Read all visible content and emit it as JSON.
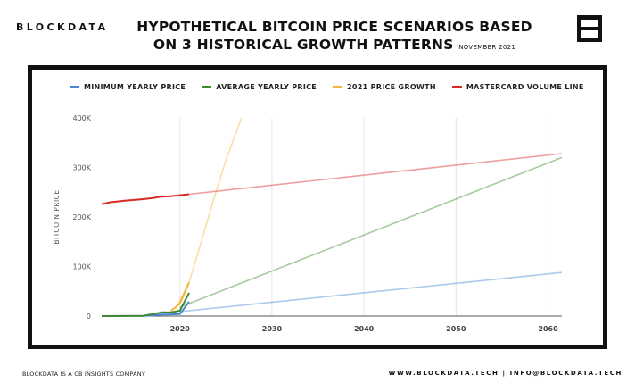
{
  "brand": "BLOCKDATA",
  "title_line1": "HYPOTHETICAL BITCOIN PRICE SCENARIOS BASED",
  "title_line2": "ON 3 HISTORICAL GROWTH PATTERNS",
  "date": "NOVEMBER 2021",
  "footer_left": "BLOCKDATA IS A CB INSIGHTS COMPANY",
  "footer_right": "WWW.BLOCKDATA.TECH | INFO@BLOCKDATA.TECH",
  "chart_data": {
    "type": "line",
    "title": "",
    "xlabel": "",
    "ylabel": "BITCOIN PRICE",
    "xlim": [
      2011.5,
      2061.5
    ],
    "ylim": [
      0,
      400000
    ],
    "x_ticks": [
      2020,
      2030,
      2040,
      2050,
      2060
    ],
    "x_tick_labels": [
      "2020",
      "2030",
      "2040",
      "2050",
      "2060"
    ],
    "y_ticks": [
      0,
      100000,
      200000,
      300000,
      400000
    ],
    "y_tick_labels": [
      "0",
      "100K",
      "200K",
      "300K",
      "400K"
    ],
    "grid": "vertical",
    "legend_position": "top",
    "series": [
      {
        "name": "MINIMUM YEARLY PRICE",
        "color": "#4a86d8",
        "historical": [
          [
            2011.5,
            0
          ],
          [
            2016,
            300
          ],
          [
            2017,
            1000
          ],
          [
            2018,
            3200
          ],
          [
            2019,
            3400
          ],
          [
            2020,
            4000
          ],
          [
            2021,
            29000
          ]
        ],
        "projection": [
          [
            2020,
            9000
          ],
          [
            2061.5,
            88000
          ]
        ]
      },
      {
        "name": "AVERAGE YEARLY PRICE",
        "color": "#3f8a2f",
        "historical": [
          [
            2011.5,
            0
          ],
          [
            2016,
            500
          ],
          [
            2017,
            4000
          ],
          [
            2018,
            7500
          ],
          [
            2019,
            7400
          ],
          [
            2020,
            11000
          ],
          [
            2021,
            47000
          ]
        ],
        "projection": [
          [
            2020,
            18000
          ],
          [
            2061.5,
            320000
          ]
        ]
      },
      {
        "name": "2021 PRICE GROWTH",
        "color": "#f2b53a",
        "historical": [
          [
            2019,
            10000
          ],
          [
            2020,
            25000
          ],
          [
            2021,
            68000
          ]
        ],
        "projection": [
          [
            2019.5,
            15000
          ],
          [
            2021,
            68000
          ],
          [
            2022,
            130000
          ],
          [
            2023.5,
            225000
          ],
          [
            2025,
            315000
          ],
          [
            2026.7,
            400000
          ]
        ]
      },
      {
        "name": "MASTERCARD VOLUME LINE",
        "color": "#d82a24",
        "historical": [
          [
            2011.5,
            226000
          ],
          [
            2012.5,
            230000
          ],
          [
            2014,
            233000
          ],
          [
            2016,
            236000
          ],
          [
            2017,
            238000
          ],
          [
            2018,
            241000
          ],
          [
            2019,
            242000
          ],
          [
            2020,
            244000
          ],
          [
            2021,
            246000
          ]
        ],
        "projection": [
          [
            2021,
            246000
          ],
          [
            2061.5,
            328000
          ]
        ]
      }
    ]
  }
}
